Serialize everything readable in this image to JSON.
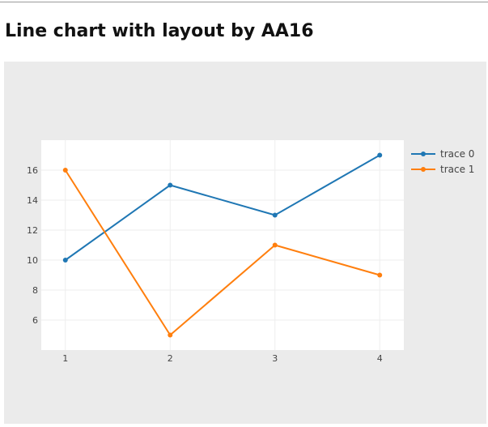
{
  "page": {
    "title": "Line chart with layout by AA16"
  },
  "chart_data": {
    "type": "line",
    "title": "",
    "xlabel": "",
    "ylabel": "",
    "x": [
      1,
      2,
      3,
      4
    ],
    "xticks": [
      1,
      2,
      3,
      4
    ],
    "yticks": [
      6,
      8,
      10,
      12,
      14,
      16
    ],
    "xlim": [
      0.77,
      4.23
    ],
    "ylim": [
      4.0,
      18.0
    ],
    "grid": true,
    "legend_position": "top-right",
    "colors": {
      "panel_bg": "#ebebeb",
      "plot_bg": "#ffffff",
      "grid": "#eeeeee",
      "tick_text": "#444444"
    },
    "series": [
      {
        "name": "trace 0",
        "color": "#1f77b4",
        "values": [
          10,
          15,
          13,
          17
        ]
      },
      {
        "name": "trace 1",
        "color": "#ff7f0e",
        "values": [
          16,
          5,
          11,
          9
        ]
      }
    ]
  }
}
